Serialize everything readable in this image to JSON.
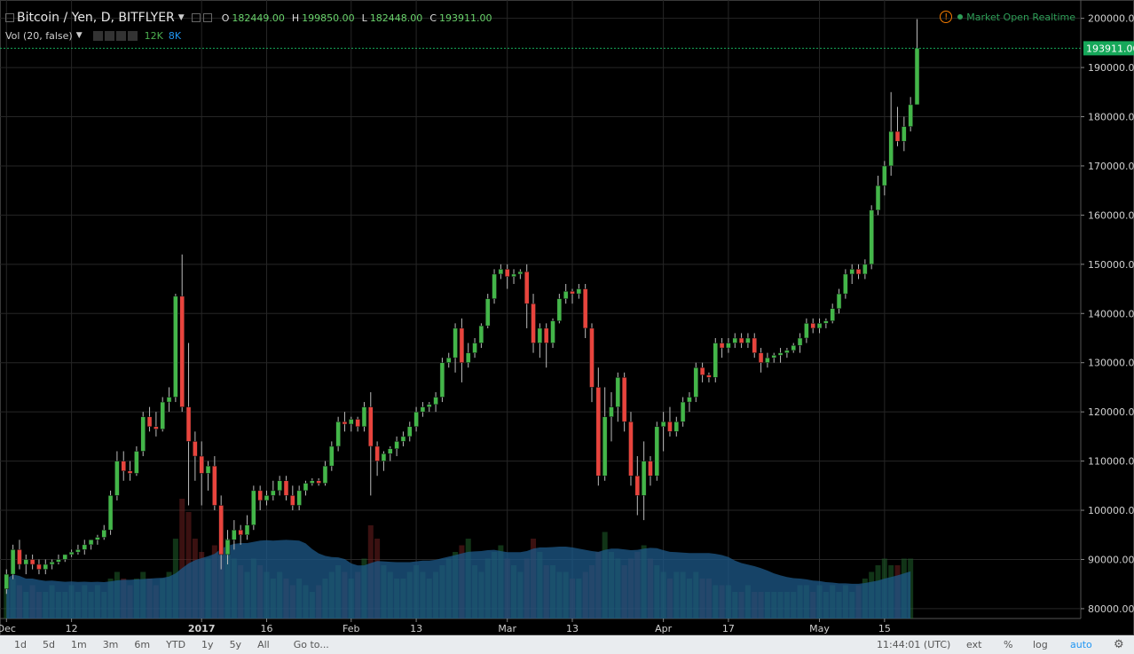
{
  "header": {
    "symbol": "Bitcoin / Yen, D, BITFLYER",
    "ohlc": [
      {
        "label": "O",
        "value": "182449.00"
      },
      {
        "label": "H",
        "value": "199850.00"
      },
      {
        "label": "L",
        "value": "182448.00"
      },
      {
        "label": "C",
        "value": "193911.00"
      }
    ]
  },
  "volume_legend": {
    "label": "Vol (20, false)",
    "value1": "12K",
    "value2": "8K"
  },
  "market_status": "Market Open Realtime",
  "colors": {
    "up": "#43b649",
    "down": "#e8443d",
    "price_label_bg": "#16a85a",
    "volume_ma": "#1e5a8a"
  },
  "chart_data": {
    "type": "candlestick",
    "title": "Bitcoin / Yen, D, BITFLYER",
    "last_price_label": "193911.00",
    "y_ticks": [
      "200000.00",
      "190000.00",
      "180000.00",
      "170000.00",
      "160000.00",
      "150000.00",
      "140000.00",
      "130000.00",
      "120000.00",
      "110000.00",
      "100000.00",
      "90000.00",
      "80000.00"
    ],
    "ylim": [
      78000,
      203000
    ],
    "x_ticks": [
      "Dec",
      "12",
      "2017",
      "16",
      "Feb",
      "13",
      "Mar",
      "13",
      "Apr",
      "17",
      "May",
      "15"
    ],
    "x_tick_candles": [
      0,
      10,
      30,
      40,
      53,
      63,
      77,
      87,
      101,
      111,
      125,
      135
    ],
    "candles": [
      [
        84000,
        88000,
        83000,
        87000
      ],
      [
        87000,
        93000,
        86000,
        92000
      ],
      [
        92000,
        94000,
        88000,
        89000
      ],
      [
        89000,
        91000,
        87000,
        90000
      ],
      [
        90000,
        91000,
        88000,
        89000
      ],
      [
        89000,
        90000,
        87000,
        88000
      ],
      [
        88000,
        90000,
        87000,
        89000
      ],
      [
        89000,
        90000,
        88000,
        89500
      ],
      [
        89500,
        91000,
        89000,
        90000
      ],
      [
        90000,
        91000,
        89500,
        91000
      ],
      [
        91000,
        92000,
        90500,
        91500
      ],
      [
        91500,
        93000,
        91000,
        92000
      ],
      [
        92000,
        94000,
        91000,
        93000
      ],
      [
        93000,
        94000,
        92000,
        94000
      ],
      [
        94000,
        95000,
        93000,
        94500
      ],
      [
        94500,
        97000,
        94000,
        96000
      ],
      [
        96000,
        104000,
        95000,
        103000
      ],
      [
        103000,
        112000,
        102000,
        110000
      ],
      [
        110000,
        112000,
        106000,
        108000
      ],
      [
        108000,
        110000,
        106000,
        107500
      ],
      [
        107500,
        113000,
        107000,
        112000
      ],
      [
        112000,
        120000,
        111000,
        119000
      ],
      [
        119000,
        121000,
        116000,
        117000
      ],
      [
        117000,
        120000,
        115000,
        116500
      ],
      [
        116500,
        123000,
        116000,
        122000
      ],
      [
        122000,
        125000,
        120000,
        123000
      ],
      [
        123000,
        144000,
        122000,
        143500
      ],
      [
        143500,
        152000,
        120000,
        121000
      ],
      [
        121000,
        134000,
        101000,
        114000
      ],
      [
        114000,
        116000,
        106000,
        111000
      ],
      [
        111000,
        114000,
        101000,
        107500
      ],
      [
        107500,
        110000,
        104000,
        109000
      ],
      [
        109000,
        111000,
        100000,
        101000
      ],
      [
        101000,
        103000,
        88000,
        91000
      ],
      [
        91000,
        96000,
        89000,
        94000
      ],
      [
        94000,
        98000,
        92000,
        96000
      ],
      [
        96000,
        97000,
        93000,
        95000
      ],
      [
        95000,
        99000,
        94000,
        97000
      ],
      [
        97000,
        105000,
        96000,
        104000
      ],
      [
        104000,
        105000,
        100000,
        102000
      ],
      [
        102000,
        104000,
        101000,
        103000
      ],
      [
        103000,
        106000,
        102000,
        104000
      ],
      [
        104000,
        107000,
        103000,
        106000
      ],
      [
        106000,
        107000,
        102000,
        103000
      ],
      [
        103000,
        105000,
        100000,
        101000
      ],
      [
        101000,
        105000,
        100000,
        104000
      ],
      [
        104000,
        106000,
        103000,
        105500
      ],
      [
        105500,
        106500,
        105000,
        106000
      ],
      [
        106000,
        106500,
        105000,
        105500
      ],
      [
        105500,
        110000,
        105000,
        109000
      ],
      [
        109000,
        114000,
        108000,
        113000
      ],
      [
        113000,
        119000,
        112000,
        118000
      ],
      [
        118000,
        120000,
        116000,
        117500
      ],
      [
        117500,
        119000,
        116000,
        118500
      ],
      [
        118500,
        119000,
        116000,
        117000
      ],
      [
        117000,
        122000,
        116000,
        121000
      ],
      [
        121000,
        124000,
        103000,
        113000
      ],
      [
        113000,
        114000,
        107000,
        110000
      ],
      [
        110000,
        112000,
        108000,
        111500
      ],
      [
        111500,
        113000,
        110000,
        112500
      ],
      [
        112500,
        115000,
        111000,
        114000
      ],
      [
        114000,
        116000,
        113000,
        115000
      ],
      [
        115000,
        118000,
        114000,
        117000
      ],
      [
        117000,
        121000,
        116000,
        120000
      ],
      [
        120000,
        122000,
        119000,
        121000
      ],
      [
        121000,
        122000,
        120000,
        121500
      ],
      [
        121500,
        124000,
        120000,
        123000
      ],
      [
        123000,
        131000,
        122000,
        130000
      ],
      [
        130000,
        132000,
        129000,
        131000
      ],
      [
        131000,
        138000,
        128000,
        137000
      ],
      [
        137000,
        139000,
        126000,
        130000
      ],
      [
        130000,
        134000,
        129000,
        132000
      ],
      [
        132000,
        135000,
        131000,
        134000
      ],
      [
        134000,
        138000,
        133000,
        137500
      ],
      [
        137500,
        144000,
        137000,
        143000
      ],
      [
        143000,
        149000,
        142000,
        148000
      ],
      [
        148000,
        150000,
        147000,
        149000
      ],
      [
        149000,
        150000,
        145000,
        147500
      ],
      [
        147500,
        149000,
        146000,
        148000
      ],
      [
        148000,
        149000,
        147000,
        148500
      ],
      [
        148500,
        150000,
        137000,
        142000
      ],
      [
        142000,
        144000,
        132000,
        134000
      ],
      [
        134000,
        138000,
        131000,
        137000
      ],
      [
        137000,
        138000,
        129000,
        134000
      ],
      [
        134000,
        139000,
        133000,
        138500
      ],
      [
        138500,
        144000,
        138000,
        143000
      ],
      [
        143000,
        146000,
        142000,
        144500
      ],
      [
        144500,
        145000,
        142000,
        144000
      ],
      [
        144000,
        146000,
        143000,
        145000
      ],
      [
        145000,
        146000,
        135000,
        137000
      ],
      [
        137000,
        138000,
        122000,
        125000
      ],
      [
        125000,
        129000,
        105000,
        107000
      ],
      [
        107000,
        125000,
        106000,
        119000
      ],
      [
        119000,
        124000,
        114000,
        121000
      ],
      [
        121000,
        128000,
        118000,
        127000
      ],
      [
        127000,
        128000,
        116000,
        118000
      ],
      [
        118000,
        120000,
        105000,
        107000
      ],
      [
        107000,
        111000,
        99000,
        103000
      ],
      [
        103000,
        114000,
        98000,
        110000
      ],
      [
        110000,
        111000,
        105000,
        107000
      ],
      [
        107000,
        118000,
        106000,
        117000
      ],
      [
        117000,
        120000,
        112000,
        118000
      ],
      [
        118000,
        121000,
        115000,
        116000
      ],
      [
        116000,
        119000,
        115000,
        118000
      ],
      [
        118000,
        123000,
        117000,
        122000
      ],
      [
        122000,
        124000,
        120000,
        123000
      ],
      [
        123000,
        130000,
        122000,
        129000
      ],
      [
        129000,
        130000,
        126000,
        127500
      ],
      [
        127500,
        128000,
        126000,
        127000
      ],
      [
        127000,
        135000,
        126000,
        134000
      ],
      [
        134000,
        135000,
        131000,
        133000
      ],
      [
        133000,
        135000,
        132000,
        134000
      ],
      [
        134000,
        136000,
        133000,
        135000
      ],
      [
        135000,
        136000,
        133000,
        134000
      ],
      [
        134000,
        136000,
        133000,
        135000
      ],
      [
        135000,
        136000,
        131000,
        132000
      ],
      [
        132000,
        133000,
        128000,
        130000
      ],
      [
        130000,
        132000,
        129000,
        131000
      ],
      [
        131000,
        132000,
        130000,
        131500
      ],
      [
        131500,
        133000,
        130000,
        132000
      ],
      [
        132000,
        133000,
        131000,
        132500
      ],
      [
        132500,
        134000,
        132000,
        133500
      ],
      [
        133500,
        136000,
        132000,
        135000
      ],
      [
        135000,
        139000,
        134000,
        138000
      ],
      [
        138000,
        139000,
        136000,
        137000
      ],
      [
        137000,
        139000,
        136000,
        138000
      ],
      [
        138000,
        139000,
        137000,
        138500
      ],
      [
        138500,
        142000,
        138000,
        141000
      ],
      [
        141000,
        145000,
        140000,
        144000
      ],
      [
        144000,
        149000,
        143000,
        148000
      ],
      [
        148000,
        150000,
        146000,
        149000
      ],
      [
        149000,
        150000,
        147000,
        148000
      ],
      [
        148000,
        151000,
        147000,
        150000
      ],
      [
        150000,
        162000,
        149000,
        161000
      ],
      [
        161000,
        168000,
        160000,
        166000
      ],
      [
        166000,
        171000,
        164000,
        170000
      ],
      [
        170000,
        185000,
        168000,
        177000
      ],
      [
        177000,
        182000,
        174000,
        175000
      ],
      [
        175000,
        180000,
        173000,
        178000
      ],
      [
        178000,
        184000,
        177000,
        182449
      ],
      [
        182449,
        199850,
        182448,
        193911
      ]
    ],
    "volumes": [
      5,
      6,
      5,
      4,
      5,
      4,
      4,
      5,
      4,
      4,
      5,
      4,
      5,
      4,
      5,
      4,
      6,
      7,
      6,
      5,
      6,
      7,
      6,
      5,
      6,
      7,
      12,
      18,
      16,
      12,
      10,
      9,
      11,
      17,
      12,
      9,
      8,
      7,
      9,
      8,
      7,
      6,
      7,
      6,
      5,
      6,
      5,
      4,
      5,
      6,
      7,
      8,
      7,
      6,
      7,
      9,
      14,
      12,
      8,
      7,
      6,
      6,
      7,
      8,
      7,
      6,
      7,
      8,
      9,
      10,
      11,
      12,
      8,
      7,
      9,
      10,
      11,
      9,
      8,
      7,
      9,
      12,
      10,
      8,
      8,
      7,
      7,
      6,
      6,
      7,
      8,
      10,
      13,
      10,
      9,
      8,
      9,
      10,
      11,
      9,
      8,
      7,
      6,
      7,
      7,
      6,
      7,
      6,
      6,
      5,
      5,
      5,
      4,
      4,
      5,
      4,
      4,
      4,
      4,
      4,
      4,
      4,
      5,
      5,
      4,
      5,
      4,
      5,
      4,
      5,
      4,
      5,
      6,
      7,
      8,
      9,
      8,
      8,
      9,
      9
    ]
  },
  "bottom_toolbar": {
    "left": [
      "1d",
      "5d",
      "1m",
      "3m",
      "6m",
      "YTD",
      "1y",
      "5y",
      "All"
    ],
    "goto": "Go to...",
    "time": "11:44:01 (UTC)",
    "right": [
      "ext",
      "%",
      "log",
      "auto"
    ]
  }
}
